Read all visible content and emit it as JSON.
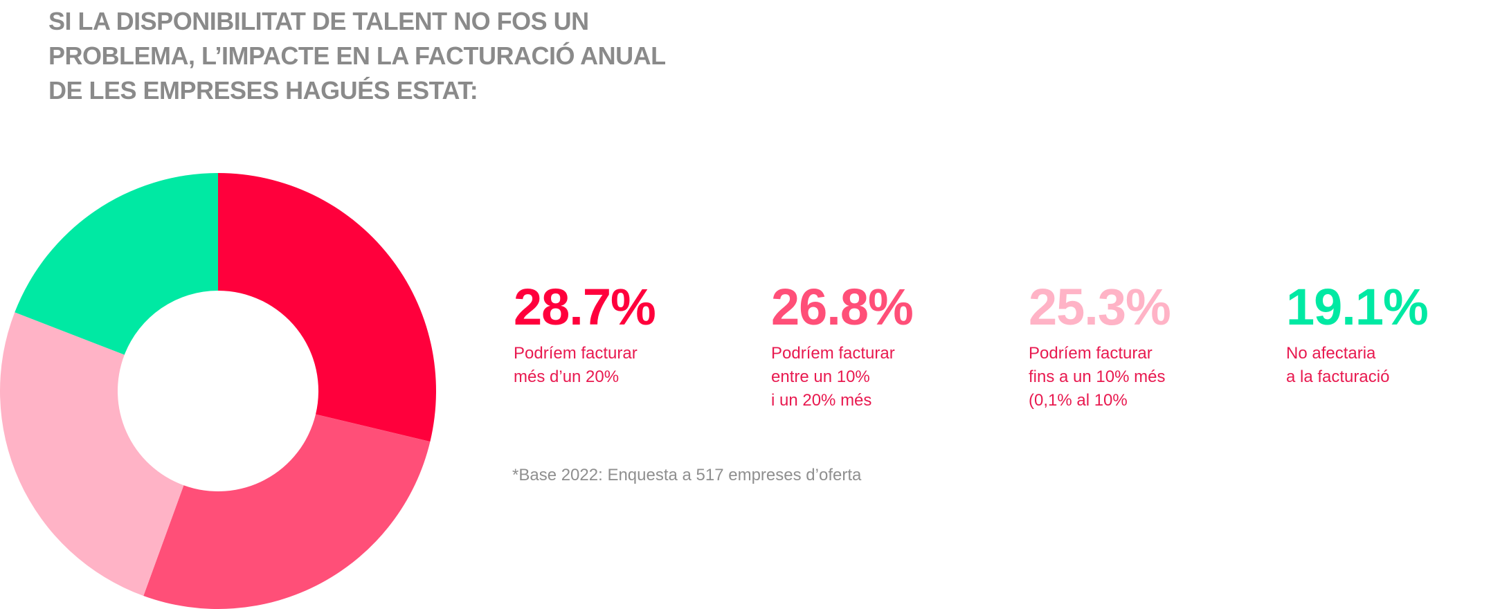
{
  "title_lines": [
    "SI LA DISPONIBILITAT DE TALENT NO FOS UN",
    "PROBLEMA, L’IMPACTE EN LA FACTURACIÓ ANUAL",
    "DE LES EMPRESES HAGUÉS ESTAT:"
  ],
  "chart_data": {
    "type": "pie",
    "donut": true,
    "title": "SI LA DISPONIBILITAT DE TALENT NO FOS UN PROBLEMA, L’IMPACTE EN LA FACTURACIÓ ANUAL DE LES EMPRESES HAGUÉS ESTAT:",
    "unit": "%",
    "slices": [
      {
        "value": 28.7,
        "display": "28.7%",
        "label_lines": [
          "Podríem facturar",
          "més d’un 20%"
        ],
        "color": "#ff003c"
      },
      {
        "value": 26.8,
        "display": "26.8%",
        "label_lines": [
          "Podríem facturar",
          "entre un 10%",
          "i un 20% més"
        ],
        "color": "#ff4f78"
      },
      {
        "value": 25.3,
        "display": "25.3%",
        "label_lines": [
          "Podríem facturar",
          "fins a un 10% més",
          "(0,1% al 10%"
        ],
        "color": "#ffb3c6"
      },
      {
        "value": 19.1,
        "display": "19.1%",
        "label_lines": [
          "No afectaria",
          "a la facturació"
        ],
        "color": "#00e9a3"
      }
    ],
    "legend_placement": "right"
  },
  "footnote": "*Base 2022: Enquesta a 517 empreses d’oferta"
}
